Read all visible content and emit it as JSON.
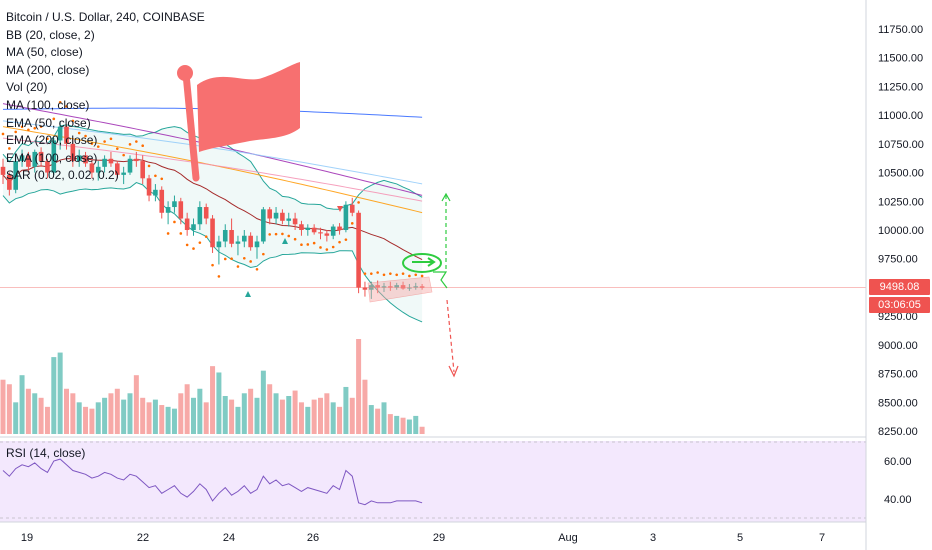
{
  "title": "Bitcoin / U.S. Dollar, 240, COINBASE",
  "indicators": [
    "BB (20, close, 2)",
    "MA (50, close)",
    "MA (200, close)",
    "Vol (20)",
    "MA (100, close)",
    "EMA (50, close)",
    "EMA (200, close)",
    "EMA (100, close)",
    "SAR (0.02, 0.02, 0.2)"
  ],
  "rsi_label": "RSI (14, close)",
  "last_price": "9498.08",
  "countdown": "03:06:05",
  "colors": {
    "up": "#26a69a",
    "down": "#ef5350",
    "flag": "#f77070",
    "green_sketch": "#2ecc40",
    "rsi_band": "#f3e8fd"
  },
  "icons": [
    "flag-drawing",
    "green-ellipse-drawing",
    "projection-arrows",
    "rising-channel-box"
  ],
  "chart_data": {
    "type": "candlestick",
    "y_axis_ticks": [
      "11750.00",
      "11500.00",
      "11250.00",
      "11000.00",
      "10750.00",
      "10500.00",
      "10250.00",
      "10000.00",
      "9750.00",
      "9500.00",
      "9250.00",
      "9000.00",
      "8750.00",
      "8500.00",
      "8250.00"
    ],
    "x_axis_ticks": [
      "19",
      "22",
      "24",
      "26",
      "29",
      "Aug",
      "3",
      "5",
      "7"
    ],
    "rsi_ticks": [
      "60.00",
      "40.00"
    ],
    "ylim": [
      8250,
      11750
    ],
    "rsi_ylim": [
      30,
      70
    ],
    "candles": [
      [
        10550,
        10620,
        10400,
        10480
      ],
      [
        10480,
        10500,
        10300,
        10350
      ],
      [
        10350,
        10650,
        10320,
        10600
      ],
      [
        10600,
        10700,
        10550,
        10650
      ],
      [
        10650,
        10680,
        10500,
        10550
      ],
      [
        10550,
        10700,
        10500,
        10680
      ],
      [
        10680,
        10720,
        10550,
        10600
      ],
      [
        10600,
        10620,
        10450,
        10500
      ],
      [
        10500,
        10800,
        10480,
        10780
      ],
      [
        10780,
        10950,
        10700,
        10900
      ],
      [
        10900,
        10920,
        10700,
        10750
      ],
      [
        10750,
        10800,
        10550,
        10600
      ],
      [
        10600,
        10700,
        10550,
        10650
      ],
      [
        10650,
        10680,
        10550,
        10580
      ],
      [
        10580,
        10620,
        10450,
        10500
      ],
      [
        10500,
        10600,
        10430,
        10550
      ],
      [
        10550,
        10650,
        10500,
        10620
      ],
      [
        10620,
        10680,
        10550,
        10580
      ],
      [
        10580,
        10600,
        10450,
        10480
      ],
      [
        10480,
        10550,
        10400,
        10500
      ],
      [
        10500,
        10650,
        10480,
        10620
      ],
      [
        10620,
        10680,
        10550,
        10600
      ],
      [
        10600,
        10650,
        10400,
        10450
      ],
      [
        10450,
        10480,
        10250,
        10300
      ],
      [
        10300,
        10400,
        10250,
        10350
      ],
      [
        10350,
        10380,
        10100,
        10150
      ],
      [
        10150,
        10250,
        10050,
        10200
      ],
      [
        10200,
        10300,
        10150,
        10250
      ],
      [
        10250,
        10280,
        10050,
        10100
      ],
      [
        10100,
        10150,
        9950,
        10000
      ],
      [
        10000,
        10100,
        9950,
        10050
      ],
      [
        10050,
        10250,
        10000,
        10200
      ],
      [
        10200,
        10230,
        10050,
        10100
      ],
      [
        10100,
        10130,
        9800,
        9850
      ],
      [
        9850,
        9950,
        9700,
        9900
      ],
      [
        9900,
        10050,
        9850,
        10000
      ],
      [
        10000,
        10100,
        9850,
        9880
      ],
      [
        9880,
        9950,
        9780,
        9900
      ],
      [
        9900,
        10000,
        9850,
        9950
      ],
      [
        9950,
        9980,
        9820,
        9850
      ],
      [
        9850,
        9950,
        9750,
        9900
      ],
      [
        9900,
        10200,
        9880,
        10180
      ],
      [
        10180,
        10200,
        10050,
        10100
      ],
      [
        10100,
        10200,
        10050,
        10150
      ],
      [
        10150,
        10180,
        10050,
        10080
      ],
      [
        10080,
        10150,
        10030,
        10100
      ],
      [
        10100,
        10150,
        10000,
        10050
      ],
      [
        10050,
        10080,
        9950,
        10000
      ],
      [
        10000,
        10050,
        9950,
        10020
      ],
      [
        10020,
        10050,
        9960,
        9980
      ],
      [
        9980,
        10020,
        9920,
        9970
      ],
      [
        9970,
        10000,
        9900,
        9950
      ],
      [
        9950,
        10050,
        9920,
        10030
      ],
      [
        10030,
        10060,
        9960,
        10000
      ],
      [
        10000,
        10250,
        9980,
        10220
      ],
      [
        10220,
        10280,
        10120,
        10150
      ],
      [
        10150,
        10170,
        9450,
        9500
      ],
      [
        9500,
        9550,
        9420,
        9480
      ],
      [
        9480,
        9550,
        9400,
        9520
      ],
      [
        9520,
        9560,
        9450,
        9500
      ],
      [
        9500,
        9540,
        9460,
        9510
      ],
      [
        9510,
        9550,
        9470,
        9500
      ],
      [
        9500,
        9540,
        9480,
        9520
      ],
      [
        9520,
        9550,
        9480,
        9490
      ],
      [
        9490,
        9530,
        9470,
        9500
      ],
      [
        9500,
        9540,
        9480,
        9510
      ],
      [
        9510,
        9530,
        9480,
        9498
      ]
    ],
    "volume": [
      60,
      55,
      35,
      65,
      50,
      45,
      40,
      30,
      85,
      90,
      50,
      45,
      35,
      30,
      28,
      35,
      40,
      45,
      50,
      38,
      45,
      65,
      40,
      35,
      38,
      32,
      30,
      28,
      45,
      55,
      40,
      50,
      35,
      75,
      68,
      42,
      38,
      30,
      45,
      50,
      40,
      70,
      55,
      45,
      38,
      42,
      48,
      35,
      30,
      38,
      40,
      45,
      35,
      30,
      52,
      40,
      105,
      60,
      32,
      28,
      35,
      22,
      20,
      18,
      16,
      20,
      8
    ],
    "rsi": [
      55,
      52,
      56,
      58,
      57,
      59,
      56,
      54,
      60,
      61,
      58,
      55,
      54,
      53,
      51,
      52,
      54,
      53,
      51,
      50,
      53,
      52,
      49,
      46,
      47,
      43,
      45,
      47,
      43,
      41,
      44,
      48,
      45,
      39,
      43,
      46,
      42,
      44,
      47,
      43,
      45,
      52,
      48,
      50,
      47,
      48,
      46,
      44,
      46,
      45,
      44,
      43,
      47,
      45,
      55,
      52,
      38,
      37,
      39,
      38,
      38,
      38,
      39,
      39,
      39,
      39,
      38
    ]
  }
}
